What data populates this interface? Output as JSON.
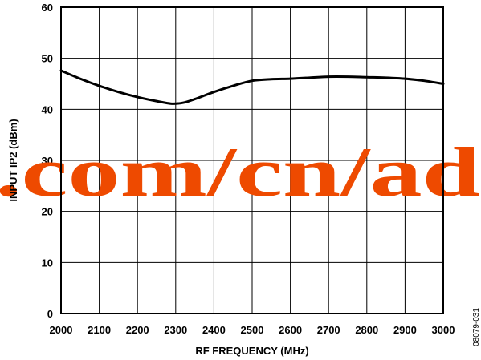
{
  "chart_data": {
    "type": "line",
    "title": "",
    "xlabel": "RF FREQUENCY (MHz)",
    "ylabel": "INPUT IP2 (dBm)",
    "xlim": [
      2000,
      3000
    ],
    "ylim": [
      0,
      60
    ],
    "x_ticks": [
      "2000",
      "2100",
      "2200",
      "2300",
      "2400",
      "2500",
      "2600",
      "2700",
      "2800",
      "2900",
      "3000"
    ],
    "y_ticks": [
      "0",
      "10",
      "20",
      "30",
      "40",
      "50",
      "60"
    ],
    "grid": true,
    "series": [
      {
        "x": [
          2000,
          2050,
          2100,
          2150,
          2200,
          2250,
          2290,
          2320,
          2350,
          2400,
          2450,
          2500,
          2550,
          2600,
          2650,
          2700,
          2750,
          2800,
          2850,
          2900,
          2950,
          3000
        ],
        "y": [
          47.6,
          46.0,
          44.6,
          43.4,
          42.4,
          41.6,
          41.1,
          41.3,
          42.0,
          43.4,
          44.6,
          45.6,
          45.9,
          46.0,
          46.2,
          46.4,
          46.4,
          46.3,
          46.2,
          46.0,
          45.6,
          45.0
        ]
      }
    ],
    "line_color": "#000000"
  },
  "watermark": {
    "text": ".com/cn/ad",
    "color": "#ee4a00"
  },
  "figure_id": "08079-031"
}
